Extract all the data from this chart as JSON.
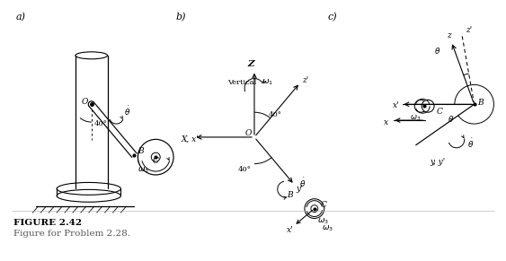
{
  "fig_width": 5.63,
  "fig_height": 2.91,
  "dpi": 100,
  "background_color": "#ffffff",
  "line_color": "#000000",
  "label_a": "a)",
  "label_b": "b)",
  "label_c": "c)",
  "figure_title": "FIGURE 2.42",
  "figure_caption": "Figure for Problem 2.28.",
  "title_fontsize": 7.5,
  "caption_fontsize": 7.5,
  "label_fontsize": 8,
  "fs": 6.5
}
